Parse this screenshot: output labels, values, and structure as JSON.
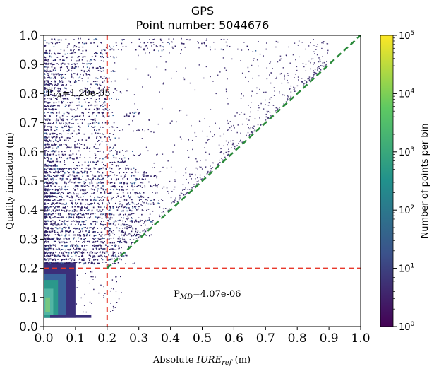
{
  "chart_data": {
    "type": "heatmap",
    "title": "GPS",
    "subtitle": "Point number: 5044676",
    "xlabel_prefix": "Absolute ",
    "xlabel_var": "IURE",
    "xlabel_sub": "ref",
    "xlabel_suffix": " (m)",
    "ylabel": "Quality indicator (m)",
    "xlim": [
      0.0,
      1.0
    ],
    "ylim": [
      0.0,
      1.0
    ],
    "xticks": [
      "0.0",
      "0.1",
      "0.2",
      "0.3",
      "0.4",
      "0.5",
      "0.6",
      "0.7",
      "0.8",
      "0.9",
      "1.0"
    ],
    "yticks": [
      "0.0",
      "0.1",
      "0.2",
      "0.3",
      "0.4",
      "0.5",
      "0.6",
      "0.7",
      "0.8",
      "0.9",
      "1.0"
    ],
    "threshold_x": 0.2,
    "threshold_y": 0.2,
    "diagonal": [
      [
        0.2,
        0.2
      ],
      [
        1.0,
        1.0
      ]
    ],
    "annotations": {
      "pfa": {
        "prefix": "P",
        "sub": "FA",
        "value": "=1.20e-05"
      },
      "pmd": {
        "prefix": "P",
        "sub": "MD",
        "value": "=4.07e-06"
      }
    },
    "colorbar": {
      "label": "Number of points per bin",
      "scale": "log",
      "ticks": [
        {
          "base": "10",
          "exp": "0"
        },
        {
          "base": "10",
          "exp": "1"
        },
        {
          "base": "10",
          "exp": "2"
        },
        {
          "base": "10",
          "exp": "3"
        },
        {
          "base": "10",
          "exp": "4"
        },
        {
          "base": "10",
          "exp": "5"
        }
      ]
    },
    "colors": {
      "threshold": "#e8382b",
      "diagonal": "#2a8a3a",
      "viridis": [
        "#440154",
        "#3b528b",
        "#21918c",
        "#5ec962",
        "#fde725"
      ]
    }
  }
}
